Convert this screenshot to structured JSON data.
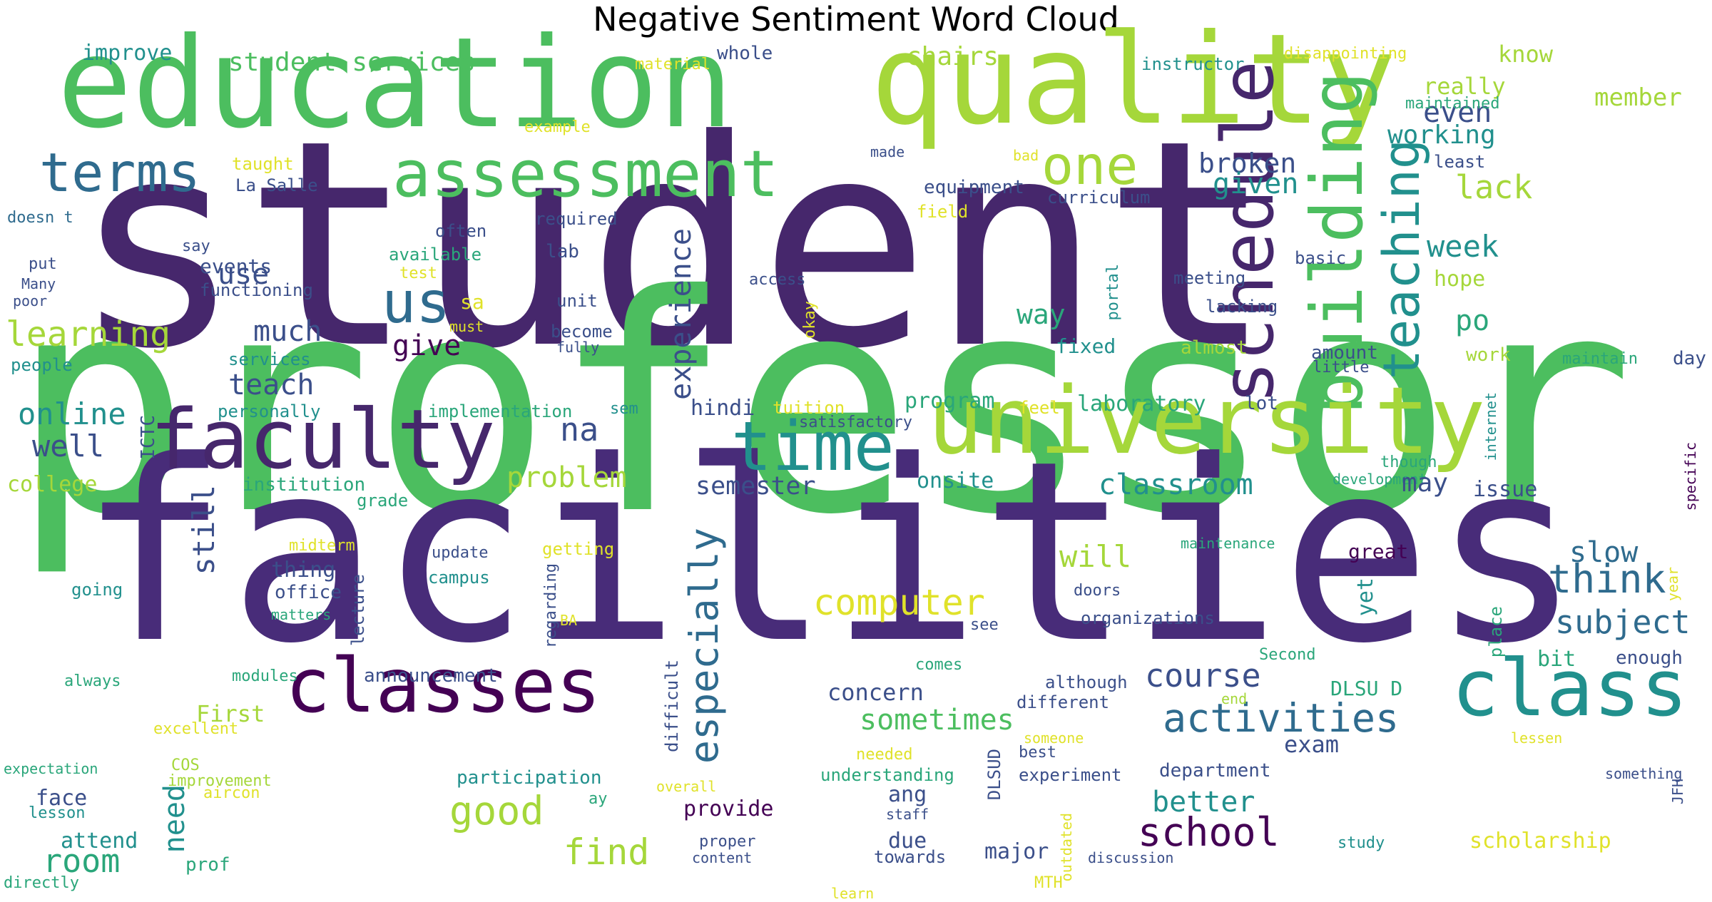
{
  "title": "Negative Sentiment Word Cloud",
  "colors": {
    "dark_purple": "#46276c",
    "purple": "#482c79",
    "deep_purple": "#440154",
    "navy": "#3b4f8a",
    "blue": "#2f6b8e",
    "teal": "#21908d",
    "sea": "#2aa67a",
    "green": "#4cbe5f",
    "lime": "#7ccd45",
    "yellowgreen": "#a5d73a",
    "yellow": "#e0e22a"
  },
  "words": [
    "student",
    "professor",
    "facilities",
    "education",
    "quality",
    "schedule",
    "building",
    "university",
    "faculty",
    "classes",
    "class",
    "assessment",
    "time",
    "terms",
    "one",
    "us",
    "teaching",
    "activities",
    "especially",
    "computer",
    "sometimes",
    "school",
    "good",
    "find",
    "course",
    "experience",
    "learning",
    "online",
    "use",
    "much",
    "give",
    "teach",
    "well",
    "na",
    "room",
    "need",
    "think",
    "subject",
    "slow",
    "better",
    "classroom",
    "still",
    "problem",
    "semester",
    "week",
    "even",
    "working",
    "broken",
    "given",
    "lack",
    "chairs",
    "really",
    "know",
    "member",
    "improve",
    "student services",
    "material",
    "whole",
    "instructor",
    "disappointing",
    "maintained",
    "example",
    "made",
    "bad",
    "least",
    "taught",
    "La Salle",
    "equipment",
    "curriculum",
    "field",
    "doesn t",
    "required",
    "often",
    "available",
    "lab",
    "say",
    "put",
    "Many",
    "poor",
    "functioning",
    "events",
    "test",
    "access",
    "meeting",
    "lacking",
    "basic",
    "portal",
    "hope",
    "po",
    "way",
    "okay",
    "sa",
    "must",
    "unit",
    "become",
    "fully",
    "maintain",
    "people",
    "services",
    "fixed",
    "almost",
    "amount",
    "little",
    "work",
    "day",
    "program",
    "hindi",
    "tuition",
    "laboratory",
    "lot",
    "feel",
    "sem",
    "personally",
    "implementation",
    "satisfactory",
    "internet",
    "though",
    "specific",
    "ICTC",
    "onsite",
    "college",
    "institution",
    "development",
    "may",
    "issue",
    "grade",
    "great",
    "will",
    "midterm",
    "getting",
    "update",
    "maintenance",
    "thing",
    "campus",
    "going",
    "office",
    "regarding",
    "lecture",
    "yet",
    "doors",
    "organizations",
    "see",
    "year",
    "matters",
    "BA",
    "place",
    "Second",
    "bit",
    "enough",
    "modules",
    "announcement",
    "DLSU D",
    "always",
    "comes",
    "although",
    "concern",
    "different",
    "end",
    "First",
    "excellent",
    "someone",
    "exam",
    "lessen",
    "expectation",
    "COS",
    "needed",
    "best",
    "department",
    "improvement",
    "participation",
    "understanding",
    "experiment",
    "something",
    "face",
    "aircon",
    "ay",
    "overall",
    "lesson",
    "provide",
    "staff",
    "DLSUD",
    "JFH",
    "ang",
    "attend",
    "due",
    "major",
    "proper",
    "towards",
    "scholarship",
    "study",
    "content",
    "discussion",
    "prof",
    "directly",
    "MTH",
    "outdated",
    "difficult",
    "learn"
  ]
}
